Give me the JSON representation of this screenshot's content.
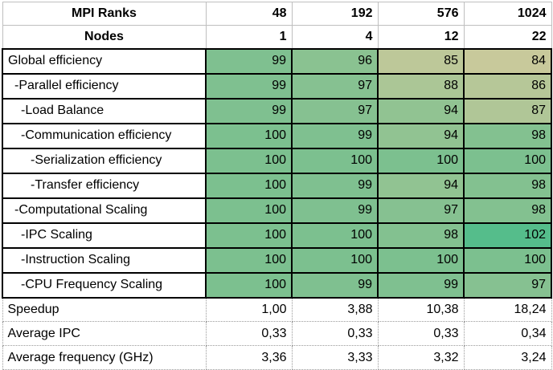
{
  "chart_data": {
    "type": "table",
    "header_rows": [
      {
        "label": "MPI Ranks",
        "values": [
          "48",
          "192",
          "576",
          "1024"
        ]
      },
      {
        "label": "Nodes",
        "values": [
          "1",
          "4",
          "12",
          "22"
        ]
      }
    ],
    "efficiency_rows": [
      {
        "label": "Global efficiency",
        "values": [
          99,
          96,
          85,
          84
        ]
      },
      {
        "label": "-Parallel efficiency",
        "values": [
          99,
          97,
          88,
          86
        ]
      },
      {
        "label": "-Load Balance",
        "values": [
          99,
          97,
          94,
          87
        ]
      },
      {
        "label": "-Communication efficiency",
        "values": [
          100,
          99,
          94,
          98
        ]
      },
      {
        "label": "-Serialization efficiency",
        "values": [
          100,
          100,
          100,
          100
        ]
      },
      {
        "label": "-Transfer efficiency",
        "values": [
          100,
          99,
          94,
          98
        ]
      },
      {
        "label": "-Computational Scaling",
        "values": [
          100,
          99,
          97,
          98
        ]
      },
      {
        "label": "-IPC Scaling",
        "values": [
          100,
          100,
          98,
          102
        ]
      },
      {
        "label": "-Instruction Scaling",
        "values": [
          100,
          100,
          100,
          100
        ]
      },
      {
        "label": "-CPU Frequency Scaling",
        "values": [
          100,
          99,
          99,
          97
        ]
      }
    ],
    "summary_rows": [
      {
        "label": "Speedup",
        "values": [
          "1,00",
          "3,88",
          "10,38",
          "18,24"
        ]
      },
      {
        "label": "Average IPC",
        "values": [
          "0,33",
          "0,33",
          "0,33",
          "0,34"
        ]
      },
      {
        "label": "Average frequency (GHz)",
        "values": [
          "3,36",
          "3,33",
          "3,32",
          "3,24"
        ]
      }
    ],
    "color_scale": {
      "low": "#c8c99b",
      "mid": "#7cc08f",
      "high": "#55bd8b"
    }
  }
}
